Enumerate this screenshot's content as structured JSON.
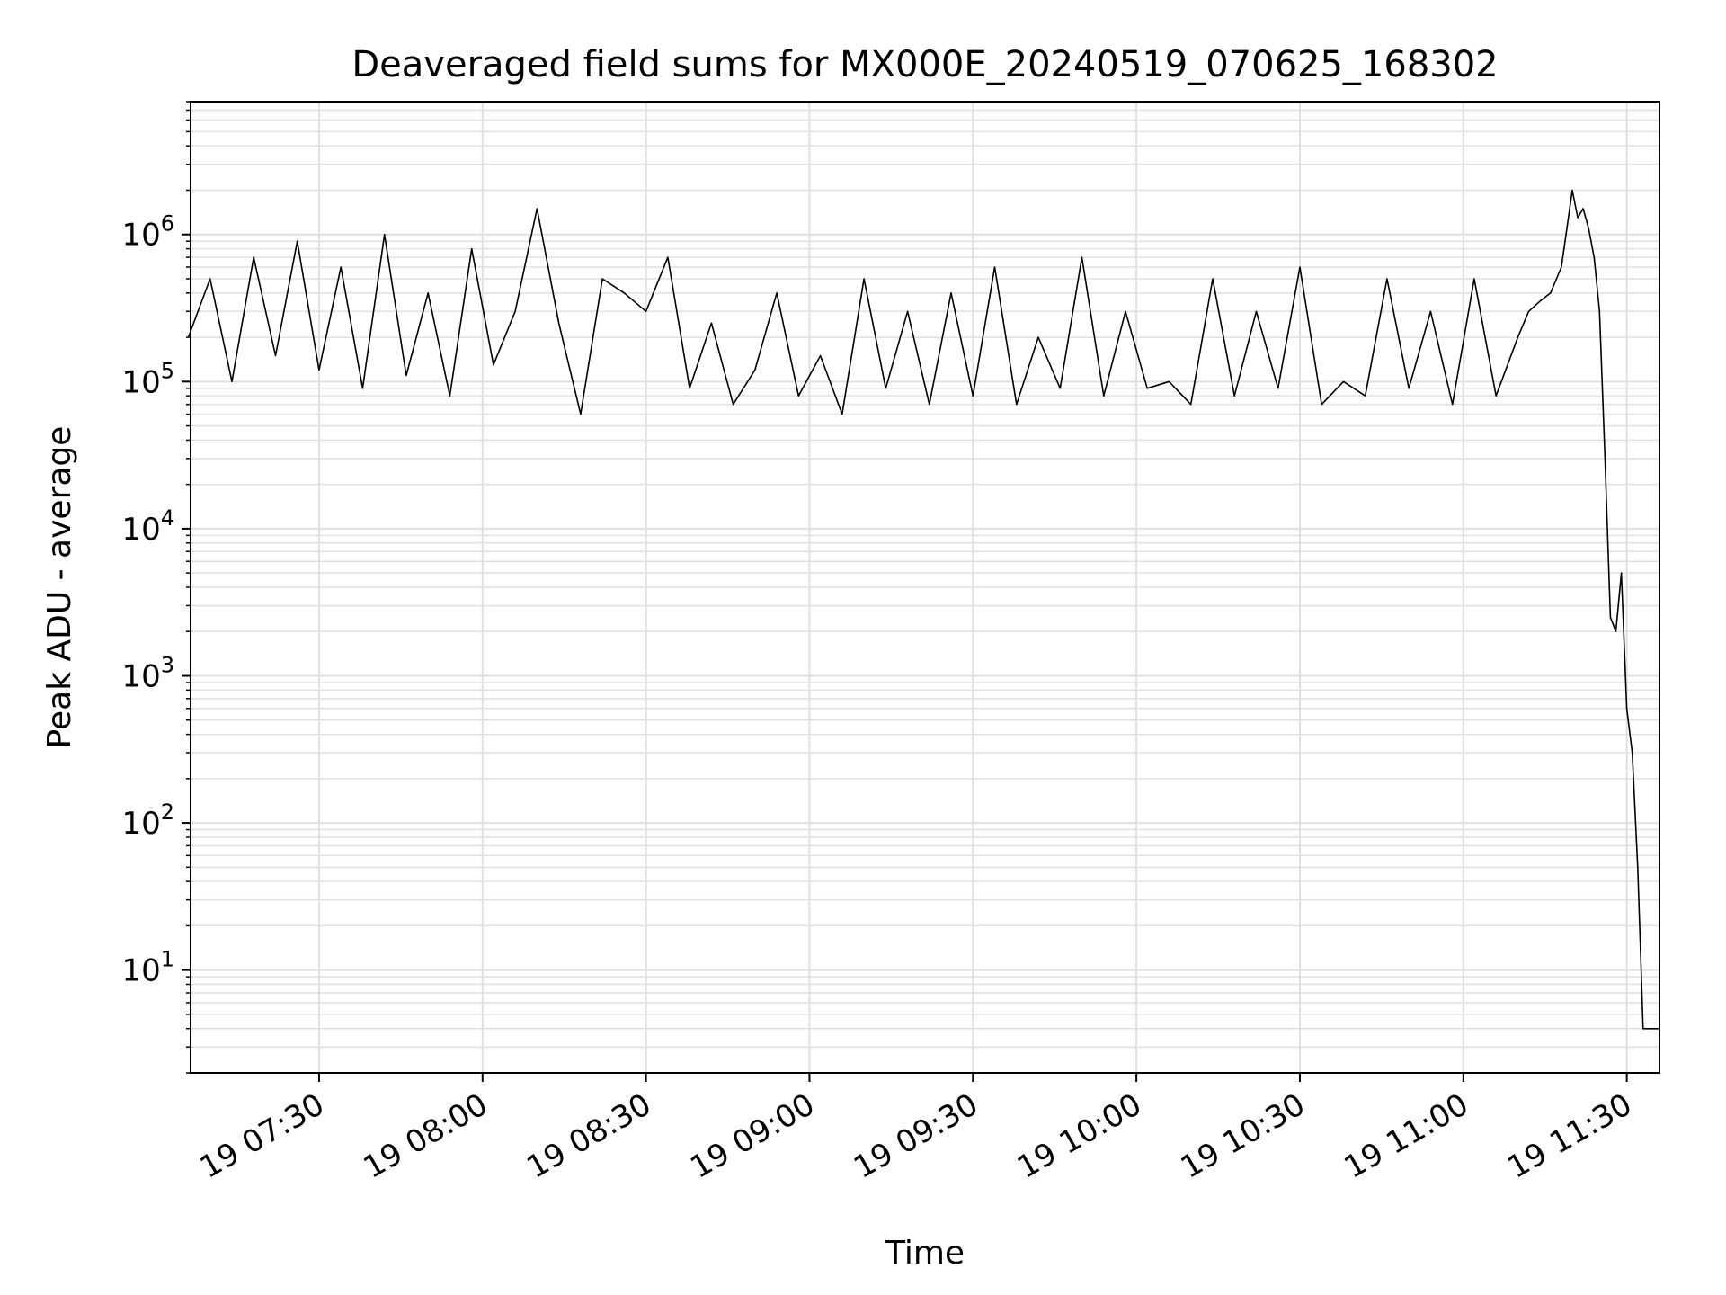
{
  "chart_data": {
    "type": "line",
    "title": "Deaveraged field sums for MX000E_20240519_070625_168302",
    "xlabel": "Time",
    "ylabel": "Peak ADU - average",
    "yscale": "log",
    "ylim": [
      2,
      8000000
    ],
    "xlim": [
      "2024-05-19 07:06:25",
      "2024-05-19 11:36:00"
    ],
    "x_ticks": [
      {
        "t": "2024-05-19 07:30",
        "label": "19 07:30"
      },
      {
        "t": "2024-05-19 08:00",
        "label": "19 08:00"
      },
      {
        "t": "2024-05-19 08:30",
        "label": "19 08:30"
      },
      {
        "t": "2024-05-19 09:00",
        "label": "19 09:00"
      },
      {
        "t": "2024-05-19 09:30",
        "label": "19 09:30"
      },
      {
        "t": "2024-05-19 10:00",
        "label": "19 10:00"
      },
      {
        "t": "2024-05-19 10:30",
        "label": "19 10:30"
      },
      {
        "t": "2024-05-19 11:00",
        "label": "19 11:00"
      },
      {
        "t": "2024-05-19 11:30",
        "label": "19 11:30"
      }
    ],
    "y_ticks": [
      {
        "value": 10,
        "base": "10",
        "exp": "1"
      },
      {
        "value": 100,
        "base": "10",
        "exp": "2"
      },
      {
        "value": 1000,
        "base": "10",
        "exp": "3"
      },
      {
        "value": 10000,
        "base": "10",
        "exp": "4"
      },
      {
        "value": 100000,
        "base": "10",
        "exp": "5"
      },
      {
        "value": 1000000,
        "base": "10",
        "exp": "6"
      }
    ],
    "grid": true,
    "grid_minor": true,
    "line_color": "#000000",
    "grid_color": "#e0e0e0",
    "series": [
      {
        "x": [
          "2024-05-19 07:06",
          "2024-05-19 07:10",
          "2024-05-19 07:14",
          "2024-05-19 07:18",
          "2024-05-19 07:22",
          "2024-05-19 07:26",
          "2024-05-19 07:30",
          "2024-05-19 07:34",
          "2024-05-19 07:38",
          "2024-05-19 07:42",
          "2024-05-19 07:46",
          "2024-05-19 07:50",
          "2024-05-19 07:54",
          "2024-05-19 07:58",
          "2024-05-19 08:02",
          "2024-05-19 08:06",
          "2024-05-19 08:10",
          "2024-05-19 08:14",
          "2024-05-19 08:18",
          "2024-05-19 08:22",
          "2024-05-19 08:26",
          "2024-05-19 08:30",
          "2024-05-19 08:34",
          "2024-05-19 08:38",
          "2024-05-19 08:42",
          "2024-05-19 08:46",
          "2024-05-19 08:50",
          "2024-05-19 08:54",
          "2024-05-19 08:58",
          "2024-05-19 09:02",
          "2024-05-19 09:06",
          "2024-05-19 09:10",
          "2024-05-19 09:14",
          "2024-05-19 09:18",
          "2024-05-19 09:22",
          "2024-05-19 09:26",
          "2024-05-19 09:30",
          "2024-05-19 09:34",
          "2024-05-19 09:38",
          "2024-05-19 09:42",
          "2024-05-19 09:46",
          "2024-05-19 09:50",
          "2024-05-19 09:54",
          "2024-05-19 09:58",
          "2024-05-19 10:02",
          "2024-05-19 10:06",
          "2024-05-19 10:10",
          "2024-05-19 10:14",
          "2024-05-19 10:18",
          "2024-05-19 10:22",
          "2024-05-19 10:26",
          "2024-05-19 10:30",
          "2024-05-19 10:34",
          "2024-05-19 10:38",
          "2024-05-19 10:42",
          "2024-05-19 10:46",
          "2024-05-19 10:50",
          "2024-05-19 10:54",
          "2024-05-19 10:58",
          "2024-05-19 11:02",
          "2024-05-19 11:06",
          "2024-05-19 11:10",
          "2024-05-19 11:12",
          "2024-05-19 11:14",
          "2024-05-19 11:16",
          "2024-05-19 11:18",
          "2024-05-19 11:20",
          "2024-05-19 11:21",
          "2024-05-19 11:22",
          "2024-05-19 11:23",
          "2024-05-19 11:24",
          "2024-05-19 11:25",
          "2024-05-19 11:26",
          "2024-05-19 11:27",
          "2024-05-19 11:28",
          "2024-05-19 11:29",
          "2024-05-19 11:30",
          "2024-05-19 11:31",
          "2024-05-19 11:32",
          "2024-05-19 11:33",
          "2024-05-19 11:34",
          "2024-05-19 11:35",
          "2024-05-19 11:36"
        ],
        "y": [
          200000,
          500000,
          100000,
          700000,
          150000,
          900000,
          120000,
          600000,
          90000,
          1000000,
          110000,
          400000,
          80000,
          800000,
          130000,
          300000,
          1500000,
          250000,
          60000,
          500000,
          400000,
          300000,
          700000,
          90000,
          250000,
          70000,
          120000,
          400000,
          80000,
          150000,
          60000,
          500000,
          90000,
          300000,
          70000,
          400000,
          80000,
          600000,
          70000,
          200000,
          90000,
          700000,
          80000,
          300000,
          90000,
          100000,
          70000,
          500000,
          80000,
          300000,
          90000,
          600000,
          70000,
          100000,
          80000,
          500000,
          90000,
          300000,
          70000,
          500000,
          80000,
          200000,
          300000,
          350000,
          400000,
          600000,
          2000000,
          1300000,
          1500000,
          1100000,
          700000,
          300000,
          30000,
          2500,
          2000,
          5000,
          600,
          300,
          50,
          4,
          4,
          4,
          4
        ]
      }
    ]
  }
}
